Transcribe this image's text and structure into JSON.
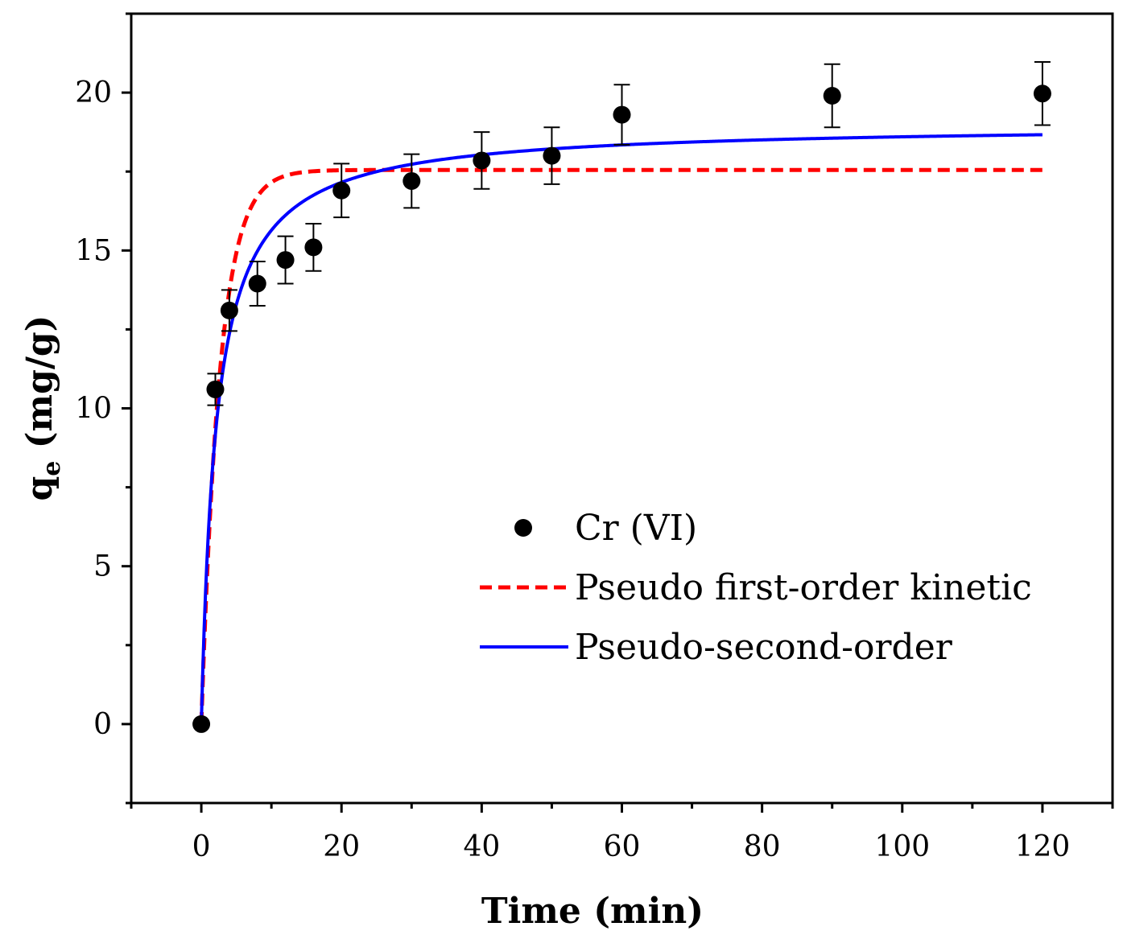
{
  "chart_data": {
    "type": "scatter",
    "title": "",
    "xlabel": "Time (min)",
    "ylabel": {
      "main": "q",
      "subscript": "e",
      "unit": " (mg/g)"
    },
    "xlim": [
      -10,
      130
    ],
    "ylim": [
      -2.5,
      22.5
    ],
    "xticks": [
      0,
      20,
      40,
      60,
      80,
      100,
      120
    ],
    "xticks_minor": [
      -10,
      10,
      30,
      50,
      70,
      90,
      110,
      130
    ],
    "yticks": [
      0,
      5,
      10,
      15,
      20
    ],
    "legend_position": "center-right",
    "series": [
      {
        "name": "Cr (VI)",
        "kind": "scatter",
        "color": "#000000",
        "x": [
          0,
          2,
          4,
          8,
          12,
          16,
          20,
          30,
          40,
          50,
          60,
          90,
          120
        ],
        "y": [
          0,
          10.6,
          13.1,
          13.95,
          14.7,
          15.1,
          16.9,
          17.2,
          17.85,
          18.0,
          19.3,
          19.9,
          19.97
        ],
        "err": [
          0,
          0.5,
          0.65,
          0.7,
          0.75,
          0.75,
          0.85,
          0.85,
          0.9,
          0.9,
          0.95,
          1.0,
          1.0
        ]
      },
      {
        "name": "Pseudo first-order kinetic",
        "kind": "line",
        "style": "dashed",
        "color": "#ff0000",
        "model": "pfo",
        "qe": 17.55,
        "k1": 0.38,
        "x_range": [
          0,
          120
        ]
      },
      {
        "name": "Pseudo-second-order",
        "kind": "line",
        "style": "solid",
        "color": "#0000ff",
        "model": "pso",
        "qe": 19.0,
        "k2": 0.0245,
        "x_range": [
          0,
          120
        ]
      }
    ]
  }
}
